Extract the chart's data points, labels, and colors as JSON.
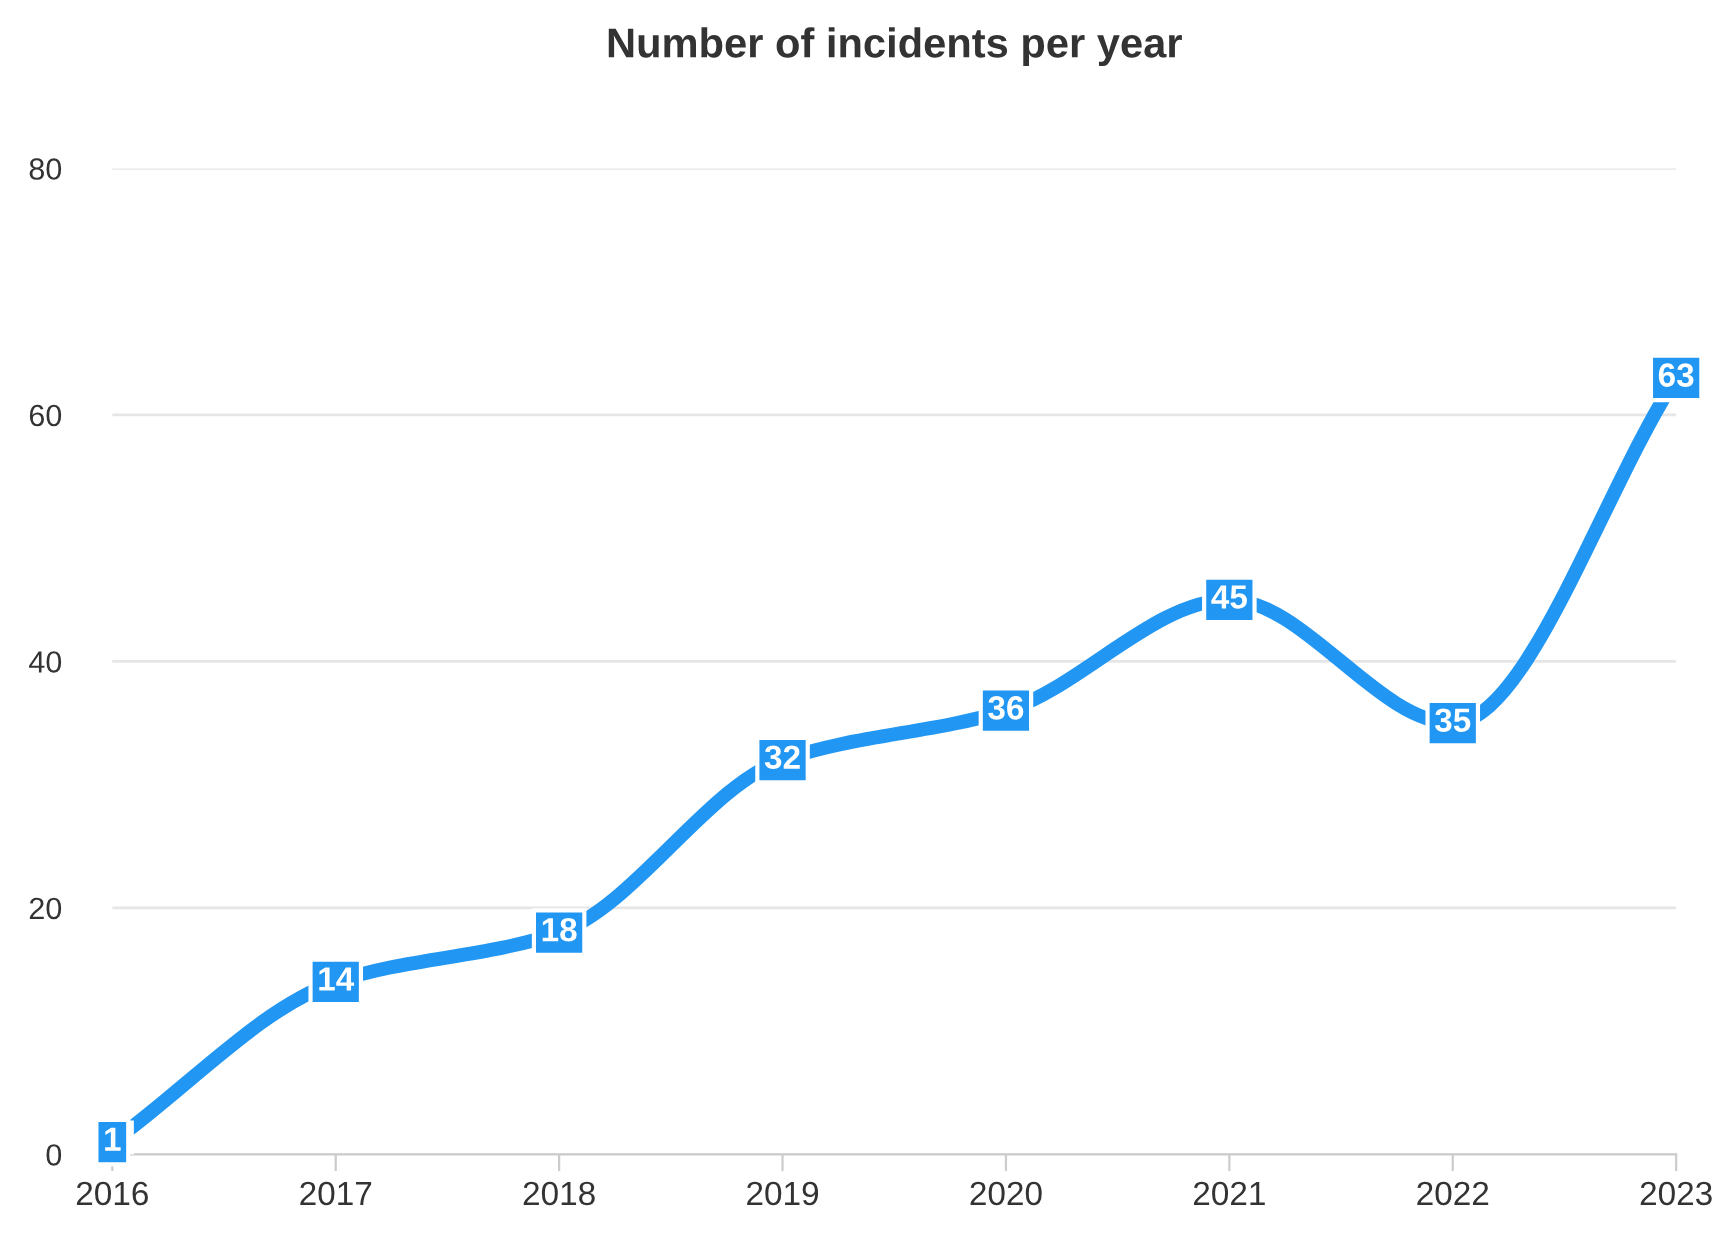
{
  "chart_data": {
    "type": "line",
    "title": "Number of incidents per year",
    "x": [
      2016,
      2017,
      2018,
      2019,
      2020,
      2021,
      2022,
      2023
    ],
    "series": [
      {
        "color": "#2196f3",
        "values": [
          1,
          14,
          18,
          32,
          36,
          45,
          35,
          63
        ]
      }
    ],
    "xlim": [
      2016,
      2023
    ],
    "xticks": [
      2016,
      2017,
      2018,
      2019,
      2020,
      2021,
      2022,
      2023
    ],
    "ylim": [
      0,
      80
    ],
    "yticks": [
      0,
      20,
      40,
      60,
      80
    ],
    "grid": "y",
    "data_labels": true,
    "marker": "square",
    "line_style": "solid"
  }
}
